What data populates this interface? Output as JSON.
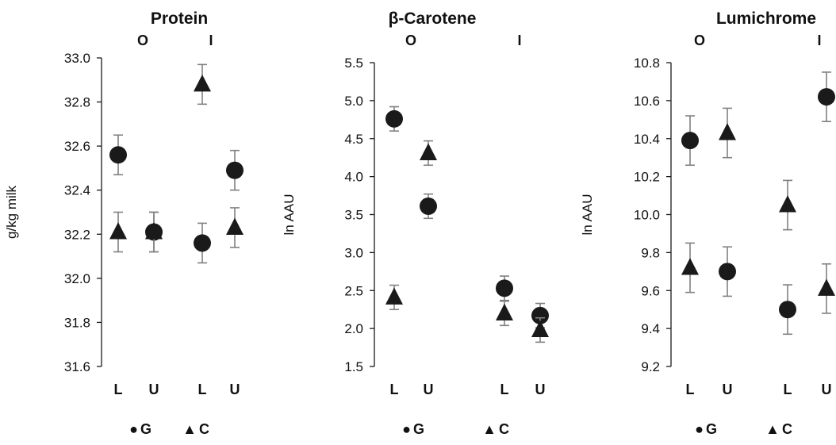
{
  "chart_data": [
    {
      "type": "scatter",
      "title": "Protein",
      "ylabel": "g/kg milk",
      "ylim": [
        31.6,
        33.0
      ],
      "y_ticks": [
        "33.0",
        "32.8",
        "32.6",
        "32.4",
        "32.2",
        "32.0",
        "31.8",
        "31.6"
      ],
      "group_labels": [
        "O",
        "I"
      ],
      "categories": [
        "L",
        "U",
        "L",
        "U"
      ],
      "legend": [
        {
          "symbol": "●",
          "label": "G"
        },
        {
          "symbol": "▲",
          "label": "C"
        }
      ],
      "series": [
        {
          "name": "G",
          "marker": "circle",
          "values": [
            32.56,
            32.21,
            32.16,
            32.49
          ],
          "errors": [
            0.09,
            0.09,
            0.09,
            0.09
          ]
        },
        {
          "name": "C",
          "marker": "triangle",
          "values": [
            32.21,
            32.21,
            32.88,
            32.23
          ],
          "errors": [
            0.09,
            0.09,
            0.09,
            0.09
          ]
        }
      ]
    },
    {
      "type": "scatter",
      "title": "β-Carotene",
      "ylabel": "ln AAU",
      "ylim": [
        1.5,
        5.5
      ],
      "y_ticks": [
        "5.5",
        "5.0",
        "4.5",
        "4.0",
        "3.5",
        "3.0",
        "2.5",
        "2.0",
        "1.5"
      ],
      "group_labels": [
        "O",
        "I"
      ],
      "categories": [
        "L",
        "U",
        "L",
        "U"
      ],
      "legend": [
        {
          "symbol": "●",
          "label": "G"
        },
        {
          "symbol": "▲",
          "label": "C"
        }
      ],
      "series": [
        {
          "name": "G",
          "marker": "circle",
          "values": [
            4.76,
            3.61,
            2.53,
            2.17
          ],
          "errors": [
            0.16,
            0.16,
            0.16,
            0.16
          ]
        },
        {
          "name": "C",
          "marker": "triangle",
          "values": [
            2.41,
            4.31,
            2.2,
            1.98
          ],
          "errors": [
            0.16,
            0.16,
            0.16,
            0.16
          ]
        }
      ]
    },
    {
      "type": "scatter",
      "title": "Lumichrome",
      "ylabel": "ln AAU",
      "ylim": [
        9.2,
        10.8
      ],
      "y_ticks": [
        "10.8",
        "10.6",
        "10.4",
        "10.2",
        "10.0",
        "9.8",
        "9.6",
        "9.4",
        "9.2"
      ],
      "group_labels": [
        "O",
        "I"
      ],
      "categories": [
        "L",
        "U",
        "L",
        "U"
      ],
      "legend": [
        {
          "symbol": "●",
          "label": "G"
        },
        {
          "symbol": "▲",
          "label": "C"
        }
      ],
      "series": [
        {
          "name": "G",
          "marker": "circle",
          "values": [
            10.39,
            9.7,
            9.5,
            10.62
          ],
          "errors": [
            0.13,
            0.13,
            0.13,
            0.13
          ]
        },
        {
          "name": "C",
          "marker": "triangle",
          "values": [
            9.72,
            10.43,
            10.05,
            9.61
          ],
          "errors": [
            0.13,
            0.13,
            0.13,
            0.13
          ]
        }
      ]
    }
  ],
  "colors": {
    "marker": "#1a1a1a",
    "axis": "#1a1a1a",
    "errorbar": "#808080"
  }
}
